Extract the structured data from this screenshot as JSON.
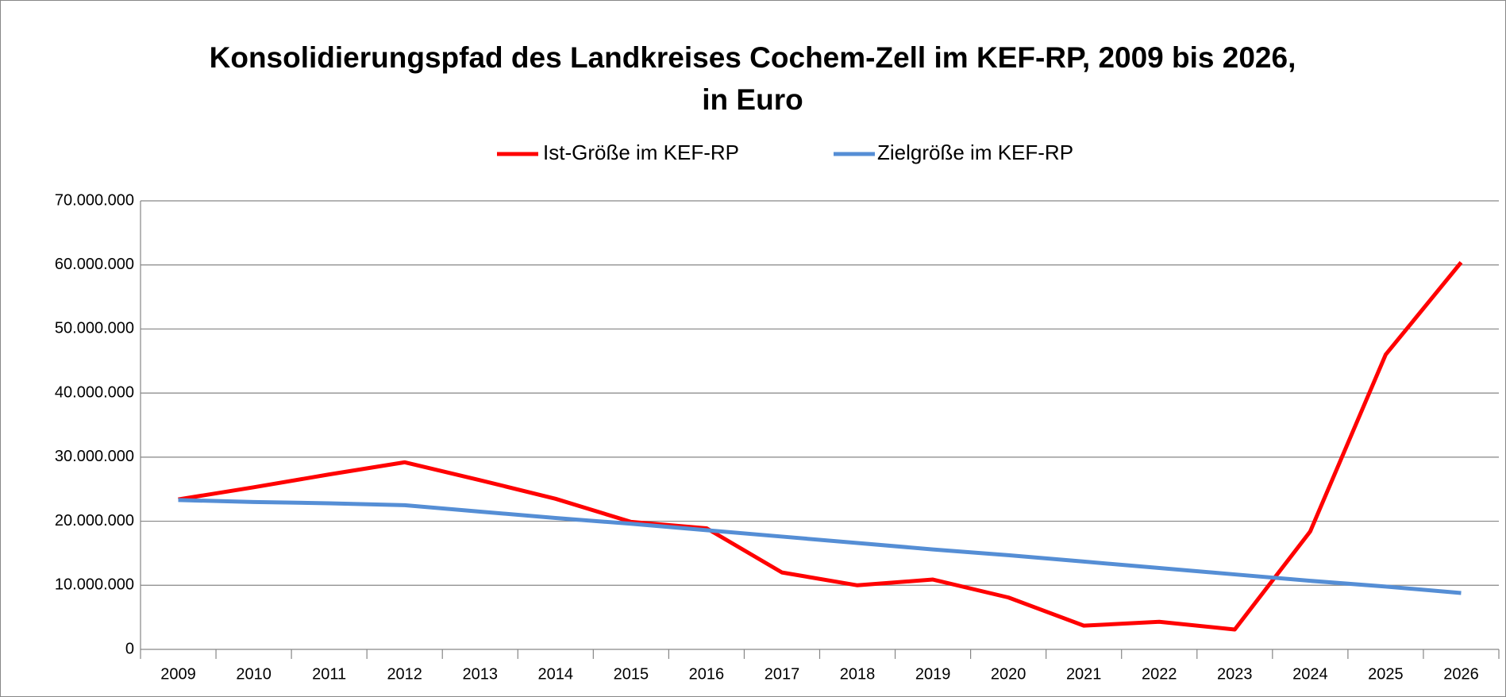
{
  "chart_data": {
    "type": "line",
    "title": [
      "Konsolidierungspfad des Landkreises Cochem-Zell im KEF-RP, 2009 bis 2026,",
      "in Euro"
    ],
    "categories": [
      "2009",
      "2010",
      "2011",
      "2012",
      "2013",
      "2014",
      "2015",
      "2016",
      "2017",
      "2018",
      "2019",
      "2020",
      "2021",
      "2022",
      "2023",
      "2024",
      "2025",
      "2026"
    ],
    "series": [
      {
        "name": "Ist-Größe im KEF-RP",
        "color": "#ff0000",
        "values": [
          23400000,
          25300000,
          27300000,
          29200000,
          26400000,
          23500000,
          19900000,
          18900000,
          12000000,
          10000000,
          10900000,
          8100000,
          3700000,
          4300000,
          3100000,
          18400000,
          46000000,
          60400000
        ]
      },
      {
        "name": "Zielgröße im KEF-RP",
        "color": "#558ed5",
        "values": [
          23300000,
          23000000,
          22800000,
          22500000,
          21500000,
          20500000,
          19600000,
          18600000,
          17600000,
          16600000,
          15600000,
          14700000,
          13700000,
          12700000,
          11700000,
          10700000,
          9800000,
          8800000
        ]
      }
    ],
    "ylim": [
      0,
      70000000
    ],
    "yticks": [
      0,
      {
        "value": 10000000,
        "label": "10.000.000"
      },
      {
        "value": 20000000,
        "label": "20.000.000"
      },
      {
        "value": 30000000,
        "label": "30.000.000"
      },
      {
        "value": 40000000,
        "label": "40.000.000"
      },
      {
        "value": 50000000,
        "label": "50.000.000"
      },
      {
        "value": 60000000,
        "label": "60.000.000"
      },
      {
        "value": 70000000,
        "label": "70.000.000"
      }
    ],
    "grid": true,
    "legend": "top"
  }
}
